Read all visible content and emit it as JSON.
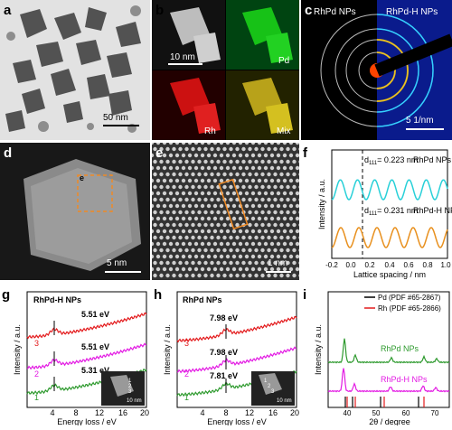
{
  "figure": {
    "panel_labels": [
      "a",
      "b",
      "c",
      "d",
      "e",
      "f",
      "g",
      "h",
      "i"
    ],
    "a": {
      "scale": "50 nm"
    },
    "b": {
      "scale": "10 nm",
      "pd": "Pd",
      "rh": "Rh",
      "mix": "Mix"
    },
    "c": {
      "left": "RhPd NPs",
      "right": "RhPd-H NPs",
      "scale": "5 1/nm"
    },
    "d": {
      "scale": "5 nm",
      "marker": "e"
    },
    "e": {
      "scale": "1 nm"
    },
    "f": {
      "ylabel": "Intensity / a.u.",
      "xlabel": "Lattice spacing / nm",
      "xticks": [
        "-0.2",
        "0.0",
        "0.2",
        "0.4",
        "0.6",
        "0.8",
        "1.0"
      ],
      "top_note_d": "d",
      "top_note_sub": "111",
      "top_note_val": "= 0.223 nm",
      "top_label": "RhPd NPs",
      "bot_note_d": "d",
      "bot_note_sub": "111",
      "bot_note_val": "= 0.231 nm",
      "bot_label": "RhPd-H NPs"
    },
    "g": {
      "title": "RhPd-H NPs",
      "ylabel": "Intensity / a.u.",
      "xlabel": "Energy loss / eV",
      "xticks": [
        "4",
        "8",
        "12",
        "16",
        "20"
      ],
      "curves": [
        {
          "num": "3",
          "ev": "5.51 eV",
          "color": "#e31a1c"
        },
        {
          "num": "2",
          "ev": "5.51 eV",
          "color": "#e31ae3"
        },
        {
          "num": "1",
          "ev": "5.31 eV",
          "color": "#2e9a2e"
        }
      ],
      "inset_scale": "10 nm",
      "inset_pts": [
        "1",
        "2",
        "3"
      ]
    },
    "h": {
      "title": "RhPd NPs",
      "ylabel": "Intensity / a.u.",
      "xlabel": "Energy loss / eV",
      "xticks": [
        "4",
        "8",
        "12",
        "16",
        "20"
      ],
      "curves": [
        {
          "num": "3",
          "ev": "7.98 eV",
          "color": "#e31a1c"
        },
        {
          "num": "2",
          "ev": "7.98 eV",
          "color": "#e31ae3"
        },
        {
          "num": "1",
          "ev": "7.81 eV",
          "color": "#2e9a2e"
        }
      ],
      "inset_scale": "10 nm",
      "inset_pts": [
        "1",
        "2",
        "3"
      ]
    },
    "i": {
      "ylabel": "Intensity / a.u.",
      "xlabel": "2θ / degree",
      "xticks": [
        "40",
        "50",
        "60",
        "70"
      ],
      "legend": [
        {
          "label": "Pd (PDF #65-2867)",
          "color": "#000000"
        },
        {
          "label": "Rh (PDF #65-2866)",
          "color": "#e31a1c"
        }
      ],
      "top_label": "RhPd NPs",
      "bot_label": "RhPd-H NPs"
    }
  }
}
